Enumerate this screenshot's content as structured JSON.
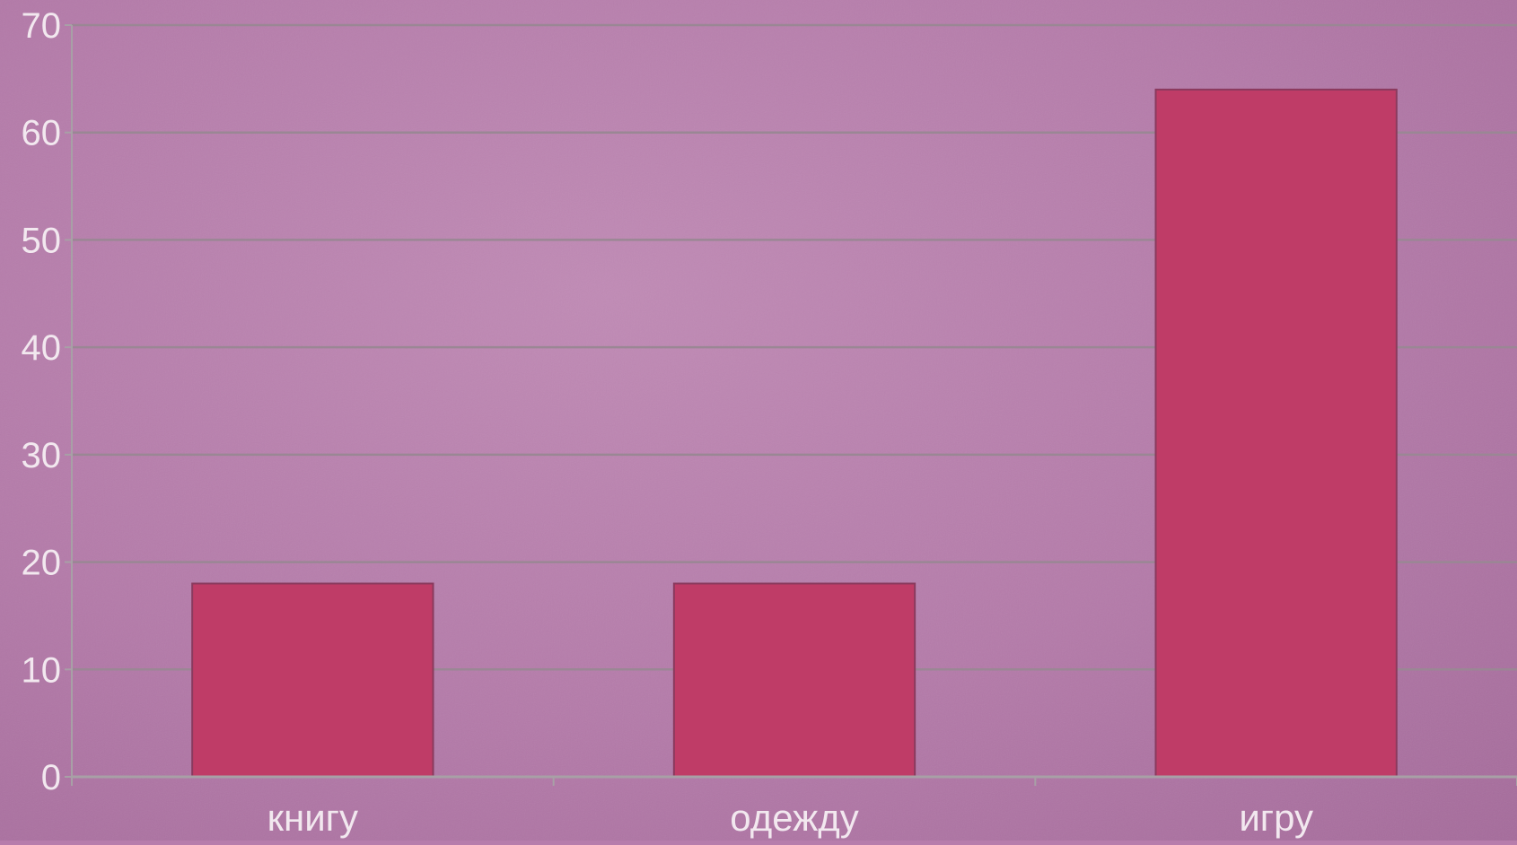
{
  "colors": {
    "background": "#b77dac",
    "bar_fill": "#bf3c67",
    "bar_stroke": "#8a3a5e",
    "grid": "#9a8794",
    "axis": "#a8a0a6",
    "label": "#f2e8ef"
  },
  "chart_data": {
    "type": "bar",
    "categories": [
      "книгу",
      "одежду",
      "игру"
    ],
    "values": [
      18,
      18,
      64
    ],
    "title": "",
    "xlabel": "",
    "ylabel": "",
    "ylim": [
      0,
      70
    ],
    "yticks": [
      "0",
      "10",
      "20",
      "30",
      "40",
      "50",
      "60",
      "70"
    ],
    "grid": true,
    "legend": "none"
  }
}
